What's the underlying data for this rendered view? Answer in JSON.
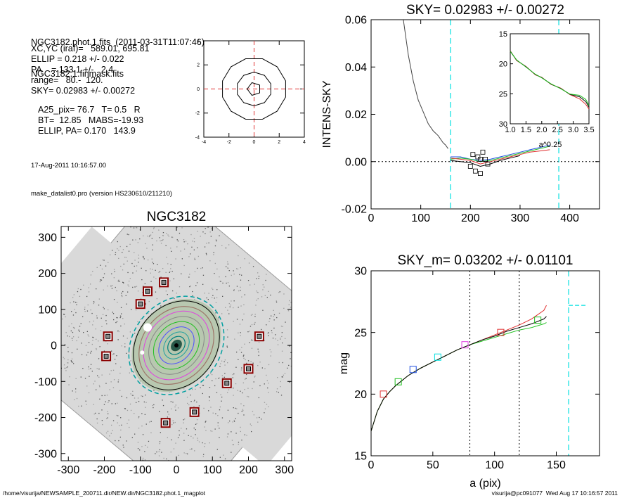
{
  "header": {
    "line1": "NGC3182.phot.1.fits  (2011-03-31T11:07:46)",
    "line2": "NGC3182.1.finmask.fits",
    "params": [
      "XC,YC (iraf)=   589.01, 695.81",
      "ELLIP = 0.218 +/- 0.022",
      "PA    = 133.1 +/-   2.4",
      "range=   80.-  120.",
      "SKY= 0.02983 +/- 0.00272"
    ],
    "params2": [
      "A25_pix= 76.7   T= 0.5   R",
      "BT=  12.85   MABS=-19.93",
      "ELLIP, PA= 0.170   143.9"
    ],
    "date": "17-Aug-2011 10:16:57.00",
    "program": "make_datalist0.pro (version HS230610/211210)"
  },
  "footer": {
    "left": "/home/visurija/NEWSAMPLE_200711.dir/NEW.dir/NGC3182.phot.1_magplot",
    "right": "visurija@pc091077  Wed Aug 17 10:16:57 2011"
  },
  "colors": {
    "black": "#000000",
    "red": "#e03030",
    "green": "#20c020",
    "blue": "#2050e0",
    "magenta": "#e040e0",
    "cyan": "#00e0e0",
    "gray": "#888888",
    "darkred": "#8b0000"
  },
  "chart_data": [
    {
      "type": "line",
      "id": "contour-panel",
      "xlim": [
        -4,
        4
      ],
      "ylim": [
        -4,
        4
      ],
      "xticks": [
        "-4",
        "-2",
        "0",
        "2",
        "4"
      ],
      "yticks": [
        "-4",
        "-2",
        "0",
        "2",
        "4"
      ]
    },
    {
      "type": "line",
      "id": "sky-panel",
      "title": "SKY= 0.02983 +/- 0.00272",
      "ylabel": "INTENS-SKY",
      "xlim": [
        0,
        460
      ],
      "ylim": [
        -0.02,
        0.06
      ],
      "xticks": [
        "0",
        "100",
        "200",
        "300",
        "400"
      ],
      "yticks": [
        "-0.02",
        "0.00",
        "0.02",
        "0.04",
        "0.06"
      ],
      "vlines": [
        160,
        378
      ],
      "series": [
        {
          "x": [
            65,
            75,
            85,
            95,
            105,
            115,
            125,
            135,
            145,
            150,
            155
          ],
          "y": [
            0.06,
            0.045,
            0.034,
            0.026,
            0.021,
            0.016,
            0.013,
            0.011,
            0.008,
            0.007,
            0.0055
          ]
        },
        {
          "x": [
            160,
            180,
            200,
            220,
            240,
            260,
            280,
            300,
            320,
            340,
            360
          ],
          "y": [
            0.002,
            0.002,
            0.001,
            0.0005,
            0.001,
            0.002,
            0.003,
            0.004,
            0.005,
            0.006,
            0.007
          ]
        },
        {
          "x": [
            160,
            180,
            200,
            220,
            240,
            260,
            280,
            300,
            320,
            340,
            360
          ],
          "y": [
            0.001,
            0.0015,
            0.001,
            0.0,
            0.0005,
            0.0015,
            0.0025,
            0.0035,
            0.0045,
            0.0055,
            0.0065
          ]
        },
        {
          "x": [
            160,
            180,
            200,
            220,
            240,
            260,
            280,
            300,
            320,
            340,
            360
          ],
          "y": [
            0.0015,
            0.001,
            0.0005,
            -0.001,
            0.0,
            0.001,
            0.002,
            0.003,
            0.004,
            0.0045,
            0.005
          ]
        },
        {
          "x": [
            160,
            180,
            200,
            220,
            240,
            260,
            280,
            300
          ],
          "y": [
            0.0005,
            0.0,
            -0.0005,
            -0.002,
            -0.001,
            0.0005,
            0.0015,
            0.0025
          ]
        }
      ],
      "markers": {
        "x": [
          205,
          215,
          225,
          230,
          200,
          210,
          220,
          235,
          220
        ],
        "y": [
          0.003,
          0.002,
          0.004,
          0.001,
          -0.002,
          -0.004,
          -0.005,
          -0.001,
          0.001
        ]
      },
      "inset": {
        "xlim": [
          1.0,
          3.5
        ],
        "ylim": [
          15,
          30
        ],
        "xlabel": "a^0.25",
        "xticks": [
          "1.0",
          "1.5",
          "2.0",
          "2.5",
          "3.0",
          "3.5"
        ],
        "yticks": [
          "15",
          "20",
          "25",
          "30"
        ],
        "x": [
          1.0,
          1.2,
          1.5,
          1.8,
          2.0,
          2.3,
          2.6,
          2.9,
          3.2,
          3.4,
          3.5
        ],
        "y": [
          18.0,
          19.3,
          20.6,
          21.7,
          22.4,
          23.3,
          24.2,
          25.0,
          25.6,
          26.2,
          27.3
        ]
      }
    },
    {
      "type": "scatter",
      "id": "image-panel",
      "title": "NGC3182",
      "xlim": [
        -320,
        320
      ],
      "ylim": [
        -320,
        330
      ],
      "xticks": [
        "-300",
        "-200",
        "-100",
        "0",
        "100",
        "200",
        "300"
      ],
      "yticks": [
        "-300",
        "-200",
        "-100",
        "0",
        "100",
        "200",
        "300"
      ],
      "stars": {
        "x": [
          -35,
          -80,
          -100,
          -190,
          -195,
          230,
          200,
          140,
          50,
          -30
        ],
        "y": [
          175,
          150,
          115,
          25,
          -30,
          25,
          -65,
          -105,
          -185,
          -215
        ]
      }
    },
    {
      "type": "line",
      "id": "mag-panel",
      "title": "SKY_m=  0.03202 +/- 0.01101",
      "xlabel": "a (pix)",
      "ylabel": "mag",
      "xlim": [
        0,
        185
      ],
      "ylim": [
        15,
        30
      ],
      "xticks": [
        "0",
        "50",
        "100",
        "150"
      ],
      "yticks": [
        "15",
        "20",
        "25",
        "30"
      ],
      "vlines": [
        80,
        120,
        160
      ],
      "series": [
        {
          "x": [
            0,
            5,
            10,
            15,
            20,
            30,
            40,
            50,
            60,
            70,
            80,
            90,
            100,
            110,
            120,
            130,
            140,
            142
          ],
          "y": [
            17.0,
            18.6,
            19.6,
            20.2,
            20.7,
            21.5,
            22.1,
            22.6,
            23.1,
            23.6,
            24.0,
            24.4,
            24.7,
            25.1,
            25.4,
            25.7,
            26.1,
            26.3
          ]
        },
        {
          "x": [
            0,
            5,
            10,
            15,
            20,
            30,
            40,
            50,
            60,
            70,
            80,
            90,
            100,
            110,
            120,
            130,
            140,
            142
          ],
          "y": [
            17.0,
            18.6,
            19.6,
            20.2,
            20.7,
            21.5,
            22.1,
            22.6,
            23.1,
            23.6,
            24.0,
            24.4,
            24.8,
            25.2,
            25.6,
            26.1,
            26.8,
            27.2
          ]
        },
        {
          "x": [
            0,
            5,
            10,
            15,
            20,
            30,
            40,
            50,
            60,
            70,
            80,
            90,
            100,
            110,
            120,
            130,
            140,
            142
          ],
          "y": [
            17.0,
            18.6,
            19.6,
            20.2,
            20.7,
            21.5,
            22.1,
            22.6,
            23.1,
            23.6,
            24.0,
            24.3,
            24.6,
            24.9,
            25.2,
            25.4,
            25.7,
            25.8
          ]
        }
      ],
      "markers": {
        "x": [
          10,
          22,
          34,
          54,
          76,
          105,
          135
        ],
        "y": [
          20.0,
          21.0,
          22.0,
          23.0,
          24.0,
          25.0,
          26.0
        ]
      },
      "sky_segment": {
        "x": [
          160,
          175
        ],
        "y": 27.2
      }
    }
  ]
}
